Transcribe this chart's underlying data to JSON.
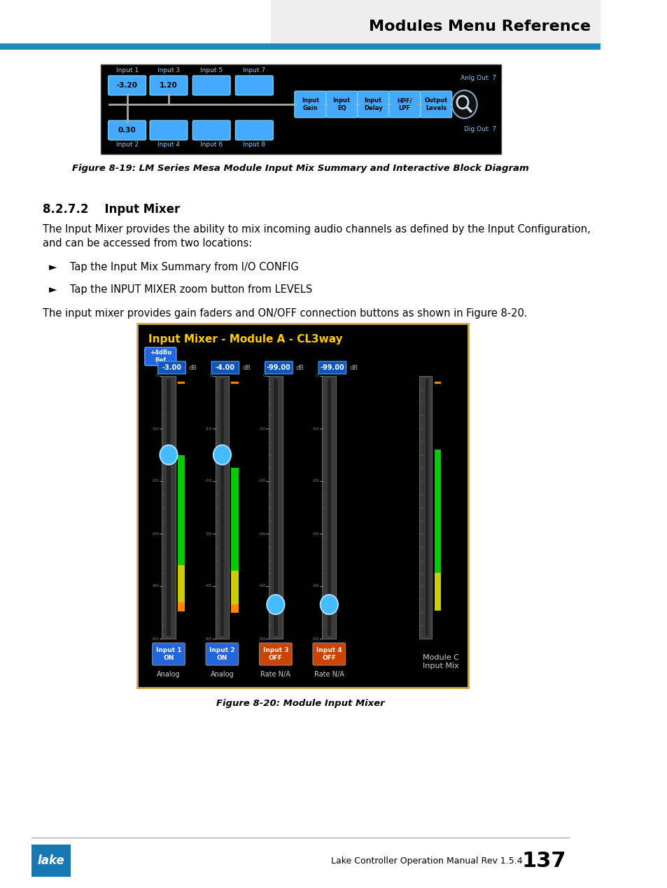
{
  "page_title": "Modules Menu Reference",
  "header_bg": "#eeeeee",
  "header_blue_bar": "#1a8bbf",
  "section_heading": "8.2.7.2    Input Mixer",
  "body_text_1a": "The Input Mixer provides the ability to mix incoming audio channels as defined by the Input Configuration,",
  "body_text_1b": "and can be accessed from two locations:",
  "bullet_1": "►    Tap the Input Mix Summary from I/O CONFIG",
  "bullet_2": "►    Tap the INPUT MIXER zoom button from LEVELS",
  "body_text_2": "The input mixer provides gain faders and ON/OFF connection buttons as shown in Figure 8-20.",
  "fig1_caption": "Figure 8-19: LM Series Mesa Module Input Mix Summary and Interactive Block Diagram",
  "fig2_caption": "Figure 8-20: Module Input Mixer",
  "footer_text": "Lake Controller Operation Manual Rev 1.5.4",
  "page_number": "137",
  "footer_blue": "#1878b4",
  "background_color": "#ffffff",
  "text_color": "#000000",
  "body_font_size": 10.5,
  "heading_font_size": 12,
  "title_font_size": 16
}
